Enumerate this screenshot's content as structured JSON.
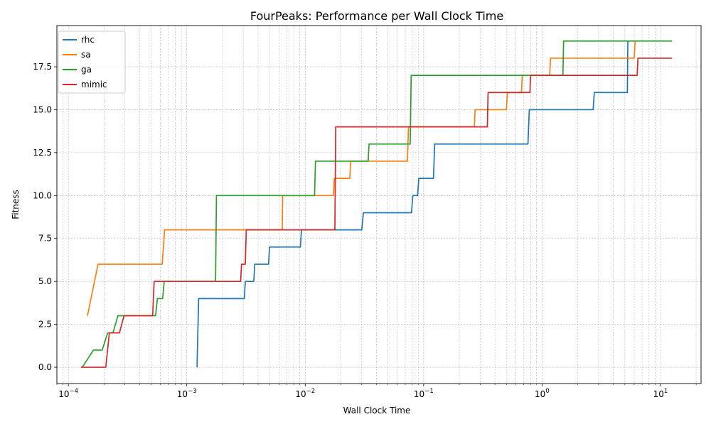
{
  "chart_data": {
    "type": "line",
    "title": "FourPeaks: Performance per Wall Clock Time",
    "xlabel": "Wall Clock Time",
    "ylabel": "Fitness",
    "x_scale": "log",
    "xlim": [
      8e-05,
      22
    ],
    "ylim": [
      -0.95,
      19.9
    ],
    "x_ticks": [
      {
        "value": 0.0001,
        "base": "10",
        "exp": "−4"
      },
      {
        "value": 0.001,
        "base": "10",
        "exp": "−3"
      },
      {
        "value": 0.01,
        "base": "10",
        "exp": "−2"
      },
      {
        "value": 0.1,
        "base": "10",
        "exp": "−1"
      },
      {
        "value": 1,
        "base": "10",
        "exp": "0"
      },
      {
        "value": 10,
        "base": "10",
        "exp": "1"
      }
    ],
    "y_ticks": [
      {
        "value": 0,
        "label": "0.0"
      },
      {
        "value": 2.5,
        "label": "2.5"
      },
      {
        "value": 5,
        "label": "5.0"
      },
      {
        "value": 7.5,
        "label": "7.5"
      },
      {
        "value": 10,
        "label": "10.0"
      },
      {
        "value": 12.5,
        "label": "12.5"
      },
      {
        "value": 15,
        "label": "15.0"
      },
      {
        "value": 17.5,
        "label": "17.5"
      }
    ],
    "grid": true,
    "grid_minor": true,
    "legend_position": "top-left",
    "series": [
      {
        "name": "rhc",
        "color": "#1f77b4",
        "points": [
          [
            0.00122,
            0
          ],
          [
            0.00126,
            4
          ],
          [
            0.00306,
            4
          ],
          [
            0.00312,
            5
          ],
          [
            0.00368,
            5
          ],
          [
            0.00375,
            6
          ],
          [
            0.0049,
            6
          ],
          [
            0.005,
            7
          ],
          [
            0.0091,
            7
          ],
          [
            0.0093,
            8
          ],
          [
            0.03,
            8
          ],
          [
            0.031,
            9
          ],
          [
            0.079,
            9
          ],
          [
            0.081,
            10
          ],
          [
            0.089,
            10
          ],
          [
            0.091,
            11
          ],
          [
            0.121,
            11
          ],
          [
            0.124,
            13
          ],
          [
            0.76,
            13
          ],
          [
            0.78,
            15
          ],
          [
            2.7,
            15
          ],
          [
            2.76,
            16
          ],
          [
            5.25,
            16
          ],
          [
            5.3,
            19
          ]
        ]
      },
      {
        "name": "sa",
        "color": "#ff7f0e",
        "points": [
          [
            0.000145,
            3
          ],
          [
            0.000178,
            6
          ],
          [
            0.00062,
            6
          ],
          [
            0.00065,
            8
          ],
          [
            0.0064,
            8
          ],
          [
            0.00645,
            10
          ],
          [
            0.0173,
            10
          ],
          [
            0.0176,
            11
          ],
          [
            0.0238,
            11
          ],
          [
            0.0242,
            12
          ],
          [
            0.073,
            12
          ],
          [
            0.0745,
            14
          ],
          [
            0.268,
            14
          ],
          [
            0.272,
            15
          ],
          [
            0.5,
            15
          ],
          [
            0.51,
            16
          ],
          [
            0.67,
            16
          ],
          [
            0.68,
            17
          ],
          [
            1.16,
            17
          ],
          [
            1.18,
            18
          ],
          [
            6.0,
            18
          ],
          [
            6.1,
            19
          ]
        ]
      },
      {
        "name": "ga",
        "color": "#2ca02c",
        "points": [
          [
            0.000131,
            0
          ],
          [
            0.000163,
            1
          ],
          [
            0.000193,
            1
          ],
          [
            0.000215,
            2
          ],
          [
            0.000238,
            2
          ],
          [
            0.000262,
            3
          ],
          [
            0.000545,
            3
          ],
          [
            0.000565,
            4
          ],
          [
            0.000625,
            4
          ],
          [
            0.000645,
            5
          ],
          [
            0.00175,
            5
          ],
          [
            0.00178,
            10
          ],
          [
            0.012,
            10
          ],
          [
            0.0122,
            12
          ],
          [
            0.034,
            12
          ],
          [
            0.0346,
            13
          ],
          [
            0.077,
            13
          ],
          [
            0.0785,
            17
          ],
          [
            1.5,
            17
          ],
          [
            1.52,
            19
          ],
          [
            12.5,
            19
          ]
        ]
      },
      {
        "name": "mimic",
        "color": "#d62728",
        "points": [
          [
            0.000128,
            0
          ],
          [
            0.000207,
            0
          ],
          [
            0.000222,
            2
          ],
          [
            0.00027,
            2
          ],
          [
            0.000295,
            3
          ],
          [
            0.000515,
            3
          ],
          [
            0.00053,
            5
          ],
          [
            0.00285,
            5
          ],
          [
            0.0029,
            6
          ],
          [
            0.00312,
            6
          ],
          [
            0.00318,
            8
          ],
          [
            0.0178,
            8
          ],
          [
            0.0181,
            14
          ],
          [
            0.345,
            14
          ],
          [
            0.35,
            16
          ],
          [
            0.79,
            16
          ],
          [
            0.8,
            17
          ],
          [
            6.35,
            17
          ],
          [
            6.45,
            18
          ],
          [
            12.5,
            18
          ]
        ]
      }
    ]
  }
}
